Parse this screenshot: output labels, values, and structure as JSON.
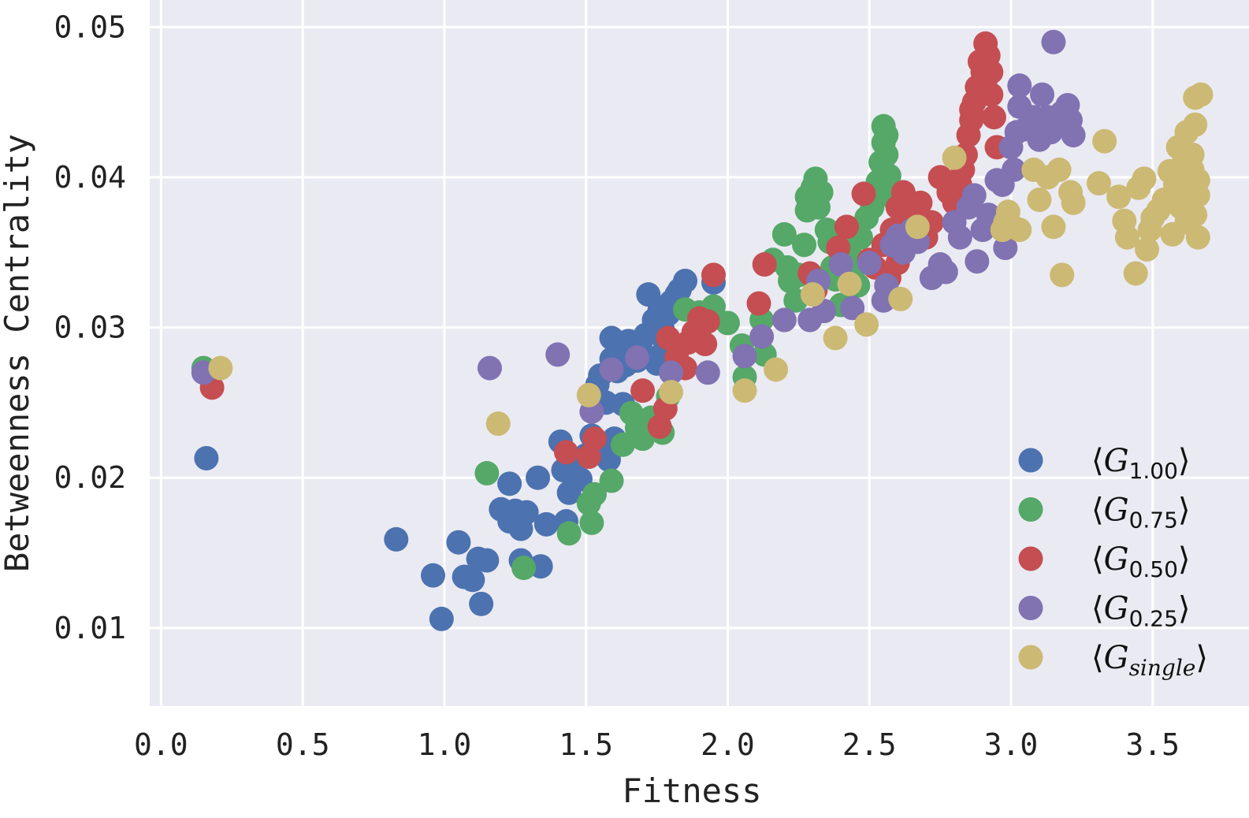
{
  "chart_data": {
    "type": "scatter",
    "xlabel": "Fitness",
    "ylabel": "Betweenness Centrality",
    "xlim": [
      -0.04,
      3.84
    ],
    "ylim": [
      0.0048,
      0.0518
    ],
    "xticks": [
      "0.0",
      "0.5",
      "1.0",
      "1.5",
      "2.0",
      "2.5",
      "3.0",
      "3.5"
    ],
    "yticks": [
      "0.01",
      "0.02",
      "0.03",
      "0.04",
      "0.05"
    ],
    "grid": true,
    "background": "#EAEAF2",
    "legend_position": "bottom-right",
    "series": [
      {
        "name": "⟨G1.00⟩",
        "legend": {
          "base": "G",
          "sub": "1.00"
        },
        "color": "#4C72B0",
        "points": [
          [
            0.16,
            0.0213
          ],
          [
            0.83,
            0.0159
          ],
          [
            0.96,
            0.0135
          ],
          [
            0.99,
            0.0106
          ],
          [
            1.05,
            0.0157
          ],
          [
            1.07,
            0.0134
          ],
          [
            1.1,
            0.0132
          ],
          [
            1.12,
            0.0146
          ],
          [
            1.13,
            0.0116
          ],
          [
            1.15,
            0.0145
          ],
          [
            1.2,
            0.0179
          ],
          [
            1.23,
            0.0196
          ],
          [
            1.23,
            0.0171
          ],
          [
            1.25,
            0.0178
          ],
          [
            1.27,
            0.0166
          ],
          [
            1.27,
            0.0145
          ],
          [
            1.29,
            0.0177
          ],
          [
            1.33,
            0.02
          ],
          [
            1.34,
            0.0141
          ],
          [
            1.36,
            0.0169
          ],
          [
            1.41,
            0.0224
          ],
          [
            1.42,
            0.0205
          ],
          [
            1.43,
            0.0171
          ],
          [
            1.44,
            0.019
          ],
          [
            1.46,
            0.021
          ],
          [
            1.48,
            0.0199
          ],
          [
            1.5,
            0.0215
          ],
          [
            1.52,
            0.0228
          ],
          [
            1.53,
            0.0256
          ],
          [
            1.54,
            0.0262
          ],
          [
            1.55,
            0.0268
          ],
          [
            1.57,
            0.025
          ],
          [
            1.57,
            0.0222
          ],
          [
            1.58,
            0.0212
          ],
          [
            1.59,
            0.0279
          ],
          [
            1.59,
            0.0293
          ],
          [
            1.61,
            0.0271
          ],
          [
            1.62,
            0.0282
          ],
          [
            1.64,
            0.0275
          ],
          [
            1.65,
            0.0291
          ],
          [
            1.66,
            0.0287
          ],
          [
            1.68,
            0.0278
          ],
          [
            1.7,
            0.0283
          ],
          [
            1.71,
            0.0295
          ],
          [
            1.72,
            0.0322
          ],
          [
            1.74,
            0.0305
          ],
          [
            1.75,
            0.0276
          ],
          [
            1.76,
            0.0312
          ],
          [
            1.77,
            0.0299
          ],
          [
            1.78,
            0.0287
          ],
          [
            1.79,
            0.0309
          ],
          [
            1.8,
            0.0317
          ],
          [
            1.82,
            0.0322
          ],
          [
            1.83,
            0.0325
          ],
          [
            1.85,
            0.0331
          ],
          [
            1.95,
            0.033
          ],
          [
            1.6,
            0.0226
          ],
          [
            1.63,
            0.0249
          ]
        ]
      },
      {
        "name": "⟨G0.75⟩",
        "legend": {
          "base": "G",
          "sub": "0.75"
        },
        "color": "#55A868",
        "points": [
          [
            0.15,
            0.0273
          ],
          [
            1.15,
            0.0203
          ],
          [
            1.28,
            0.014
          ],
          [
            1.44,
            0.0163
          ],
          [
            1.51,
            0.0183
          ],
          [
            1.52,
            0.017
          ],
          [
            1.53,
            0.0189
          ],
          [
            1.59,
            0.0198
          ],
          [
            1.63,
            0.0222
          ],
          [
            1.66,
            0.0243
          ],
          [
            1.68,
            0.0233
          ],
          [
            1.7,
            0.0226
          ],
          [
            1.73,
            0.024
          ],
          [
            1.75,
            0.0237
          ],
          [
            1.77,
            0.023
          ],
          [
            1.79,
            0.0254
          ],
          [
            1.85,
            0.0312
          ],
          [
            1.9,
            0.031
          ],
          [
            1.95,
            0.0314
          ],
          [
            2.0,
            0.0303
          ],
          [
            2.05,
            0.0288
          ],
          [
            2.06,
            0.0267
          ],
          [
            2.12,
            0.0305
          ],
          [
            2.13,
            0.0282
          ],
          [
            2.16,
            0.0345
          ],
          [
            2.2,
            0.0362
          ],
          [
            2.21,
            0.034
          ],
          [
            2.22,
            0.0331
          ],
          [
            2.24,
            0.0318
          ],
          [
            2.25,
            0.0335
          ],
          [
            2.27,
            0.0355
          ],
          [
            2.28,
            0.0378
          ],
          [
            2.28,
            0.0387
          ],
          [
            2.3,
            0.0393
          ],
          [
            2.31,
            0.0399
          ],
          [
            2.32,
            0.038
          ],
          [
            2.33,
            0.039
          ],
          [
            2.35,
            0.0365
          ],
          [
            2.36,
            0.0357
          ],
          [
            2.37,
            0.034
          ],
          [
            2.38,
            0.0332
          ],
          [
            2.4,
            0.0315
          ],
          [
            2.42,
            0.0345
          ],
          [
            2.43,
            0.0352
          ],
          [
            2.45,
            0.034
          ],
          [
            2.46,
            0.0328
          ],
          [
            2.47,
            0.036
          ],
          [
            2.49,
            0.0373
          ],
          [
            2.51,
            0.038
          ],
          [
            2.53,
            0.0397
          ],
          [
            2.54,
            0.041
          ],
          [
            2.55,
            0.0423
          ],
          [
            2.55,
            0.0434
          ],
          [
            2.56,
            0.0415
          ],
          [
            2.57,
            0.0401
          ],
          [
            2.58,
            0.0387
          ],
          [
            2.54,
            0.0392
          ],
          [
            2.56,
            0.0428
          ]
        ]
      },
      {
        "name": "⟨G0.50⟩",
        "legend": {
          "base": "G",
          "sub": "0.50"
        },
        "color": "#C44E52",
        "points": [
          [
            0.18,
            0.026
          ],
          [
            1.43,
            0.0217
          ],
          [
            1.51,
            0.0214
          ],
          [
            1.53,
            0.0226
          ],
          [
            1.7,
            0.0258
          ],
          [
            1.76,
            0.0234
          ],
          [
            1.78,
            0.0246
          ],
          [
            1.79,
            0.0293
          ],
          [
            1.82,
            0.028
          ],
          [
            1.85,
            0.0273
          ],
          [
            1.86,
            0.029
          ],
          [
            1.88,
            0.0297
          ],
          [
            1.9,
            0.0306
          ],
          [
            1.92,
            0.0289
          ],
          [
            1.93,
            0.0304
          ],
          [
            1.95,
            0.0335
          ],
          [
            2.11,
            0.0316
          ],
          [
            2.13,
            0.0342
          ],
          [
            2.29,
            0.0336
          ],
          [
            2.31,
            0.0325
          ],
          [
            2.39,
            0.0353
          ],
          [
            2.42,
            0.0367
          ],
          [
            2.48,
            0.0389
          ],
          [
            2.5,
            0.0345
          ],
          [
            2.52,
            0.034
          ],
          [
            2.55,
            0.0355
          ],
          [
            2.58,
            0.0365
          ],
          [
            2.6,
            0.038
          ],
          [
            2.62,
            0.039
          ],
          [
            2.63,
            0.037
          ],
          [
            2.65,
            0.0375
          ],
          [
            2.68,
            0.0383
          ],
          [
            2.7,
            0.036
          ],
          [
            2.72,
            0.037
          ],
          [
            2.75,
            0.04
          ],
          [
            2.78,
            0.039
          ],
          [
            2.8,
            0.0383
          ],
          [
            2.82,
            0.0395
          ],
          [
            2.83,
            0.0405
          ],
          [
            2.84,
            0.0415
          ],
          [
            2.85,
            0.0428
          ],
          [
            2.86,
            0.0438
          ],
          [
            2.86,
            0.0445
          ],
          [
            2.87,
            0.045
          ],
          [
            2.88,
            0.046
          ],
          [
            2.89,
            0.0477
          ],
          [
            2.9,
            0.047
          ],
          [
            2.91,
            0.0465
          ],
          [
            2.91,
            0.0489
          ],
          [
            2.92,
            0.0481
          ],
          [
            2.93,
            0.0455
          ],
          [
            2.94,
            0.044
          ],
          [
            2.95,
            0.042
          ],
          [
            2.93,
            0.047
          ],
          [
            2.6,
            0.0343
          ],
          [
            2.57,
            0.0333
          ]
        ]
      },
      {
        "name": "⟨G0.25⟩",
        "legend": {
          "base": "G",
          "sub": "0.25"
        },
        "color": "#8172B2",
        "points": [
          [
            0.15,
            0.027
          ],
          [
            1.16,
            0.0273
          ],
          [
            1.4,
            0.0282
          ],
          [
            1.52,
            0.0244
          ],
          [
            1.59,
            0.0272
          ],
          [
            1.68,
            0.028
          ],
          [
            1.8,
            0.027
          ],
          [
            1.93,
            0.027
          ],
          [
            2.06,
            0.0281
          ],
          [
            2.12,
            0.0294
          ],
          [
            2.2,
            0.0305
          ],
          [
            2.29,
            0.0305
          ],
          [
            2.32,
            0.0331
          ],
          [
            2.34,
            0.0311
          ],
          [
            2.4,
            0.0342
          ],
          [
            2.44,
            0.0313
          ],
          [
            2.5,
            0.0343
          ],
          [
            2.55,
            0.0318
          ],
          [
            2.56,
            0.0328
          ],
          [
            2.58,
            0.0355
          ],
          [
            2.6,
            0.0361
          ],
          [
            2.62,
            0.035
          ],
          [
            2.65,
            0.0365
          ],
          [
            2.67,
            0.0357
          ],
          [
            2.72,
            0.0333
          ],
          [
            2.75,
            0.0342
          ],
          [
            2.77,
            0.0337
          ],
          [
            2.8,
            0.037
          ],
          [
            2.82,
            0.036
          ],
          [
            2.85,
            0.038
          ],
          [
            2.87,
            0.0388
          ],
          [
            2.88,
            0.0344
          ],
          [
            2.9,
            0.0365
          ],
          [
            2.92,
            0.0375
          ],
          [
            2.95,
            0.0398
          ],
          [
            2.97,
            0.0395
          ],
          [
            2.98,
            0.0353
          ],
          [
            3.0,
            0.042
          ],
          [
            3.01,
            0.0405
          ],
          [
            3.02,
            0.043
          ],
          [
            3.03,
            0.0447
          ],
          [
            3.03,
            0.0461
          ],
          [
            3.05,
            0.0432
          ],
          [
            3.08,
            0.044
          ],
          [
            3.1,
            0.0425
          ],
          [
            3.11,
            0.0455
          ],
          [
            3.13,
            0.044
          ],
          [
            3.14,
            0.043
          ],
          [
            3.15,
            0.049
          ],
          [
            3.16,
            0.0435
          ],
          [
            3.18,
            0.0443
          ],
          [
            3.2,
            0.0448
          ],
          [
            3.21,
            0.0438
          ],
          [
            3.22,
            0.0428
          ]
        ]
      },
      {
        "name": "⟨Gsingle⟩",
        "legend": {
          "base": "G",
          "sub": "single"
        },
        "color": "#CCB974",
        "points": [
          [
            0.21,
            0.0273
          ],
          [
            1.19,
            0.0236
          ],
          [
            1.51,
            0.0255
          ],
          [
            1.8,
            0.0257
          ],
          [
            2.06,
            0.0258
          ],
          [
            2.17,
            0.0272
          ],
          [
            2.3,
            0.0322
          ],
          [
            2.38,
            0.0293
          ],
          [
            2.43,
            0.0329
          ],
          [
            2.49,
            0.0302
          ],
          [
            2.61,
            0.0319
          ],
          [
            2.67,
            0.0367
          ],
          [
            2.8,
            0.0413
          ],
          [
            2.97,
            0.0365
          ],
          [
            2.98,
            0.037
          ],
          [
            2.99,
            0.0377
          ],
          [
            3.0,
            0.0368
          ],
          [
            3.03,
            0.0365
          ],
          [
            3.08,
            0.0405
          ],
          [
            3.1,
            0.0385
          ],
          [
            3.13,
            0.04
          ],
          [
            3.15,
            0.0367
          ],
          [
            3.17,
            0.0405
          ],
          [
            3.18,
            0.0335
          ],
          [
            3.21,
            0.039
          ],
          [
            3.22,
            0.0383
          ],
          [
            3.31,
            0.0396
          ],
          [
            3.33,
            0.0424
          ],
          [
            3.38,
            0.0387
          ],
          [
            3.4,
            0.0371
          ],
          [
            3.41,
            0.036
          ],
          [
            3.44,
            0.0336
          ],
          [
            3.45,
            0.0393
          ],
          [
            3.47,
            0.0399
          ],
          [
            3.48,
            0.0352
          ],
          [
            3.49,
            0.0365
          ],
          [
            3.5,
            0.0373
          ],
          [
            3.52,
            0.0378
          ],
          [
            3.54,
            0.0385
          ],
          [
            3.56,
            0.0404
          ],
          [
            3.57,
            0.0362
          ],
          [
            3.58,
            0.0395
          ],
          [
            3.59,
            0.042
          ],
          [
            3.6,
            0.038
          ],
          [
            3.61,
            0.041
          ],
          [
            3.62,
            0.043
          ],
          [
            3.62,
            0.037
          ],
          [
            3.63,
            0.039
          ],
          [
            3.64,
            0.0405
          ],
          [
            3.64,
            0.0415
          ],
          [
            3.65,
            0.0453
          ],
          [
            3.65,
            0.0435
          ],
          [
            3.66,
            0.0398
          ],
          [
            3.66,
            0.0388
          ],
          [
            3.67,
            0.0455
          ],
          [
            3.65,
            0.0375
          ],
          [
            3.66,
            0.036
          ]
        ]
      }
    ]
  }
}
